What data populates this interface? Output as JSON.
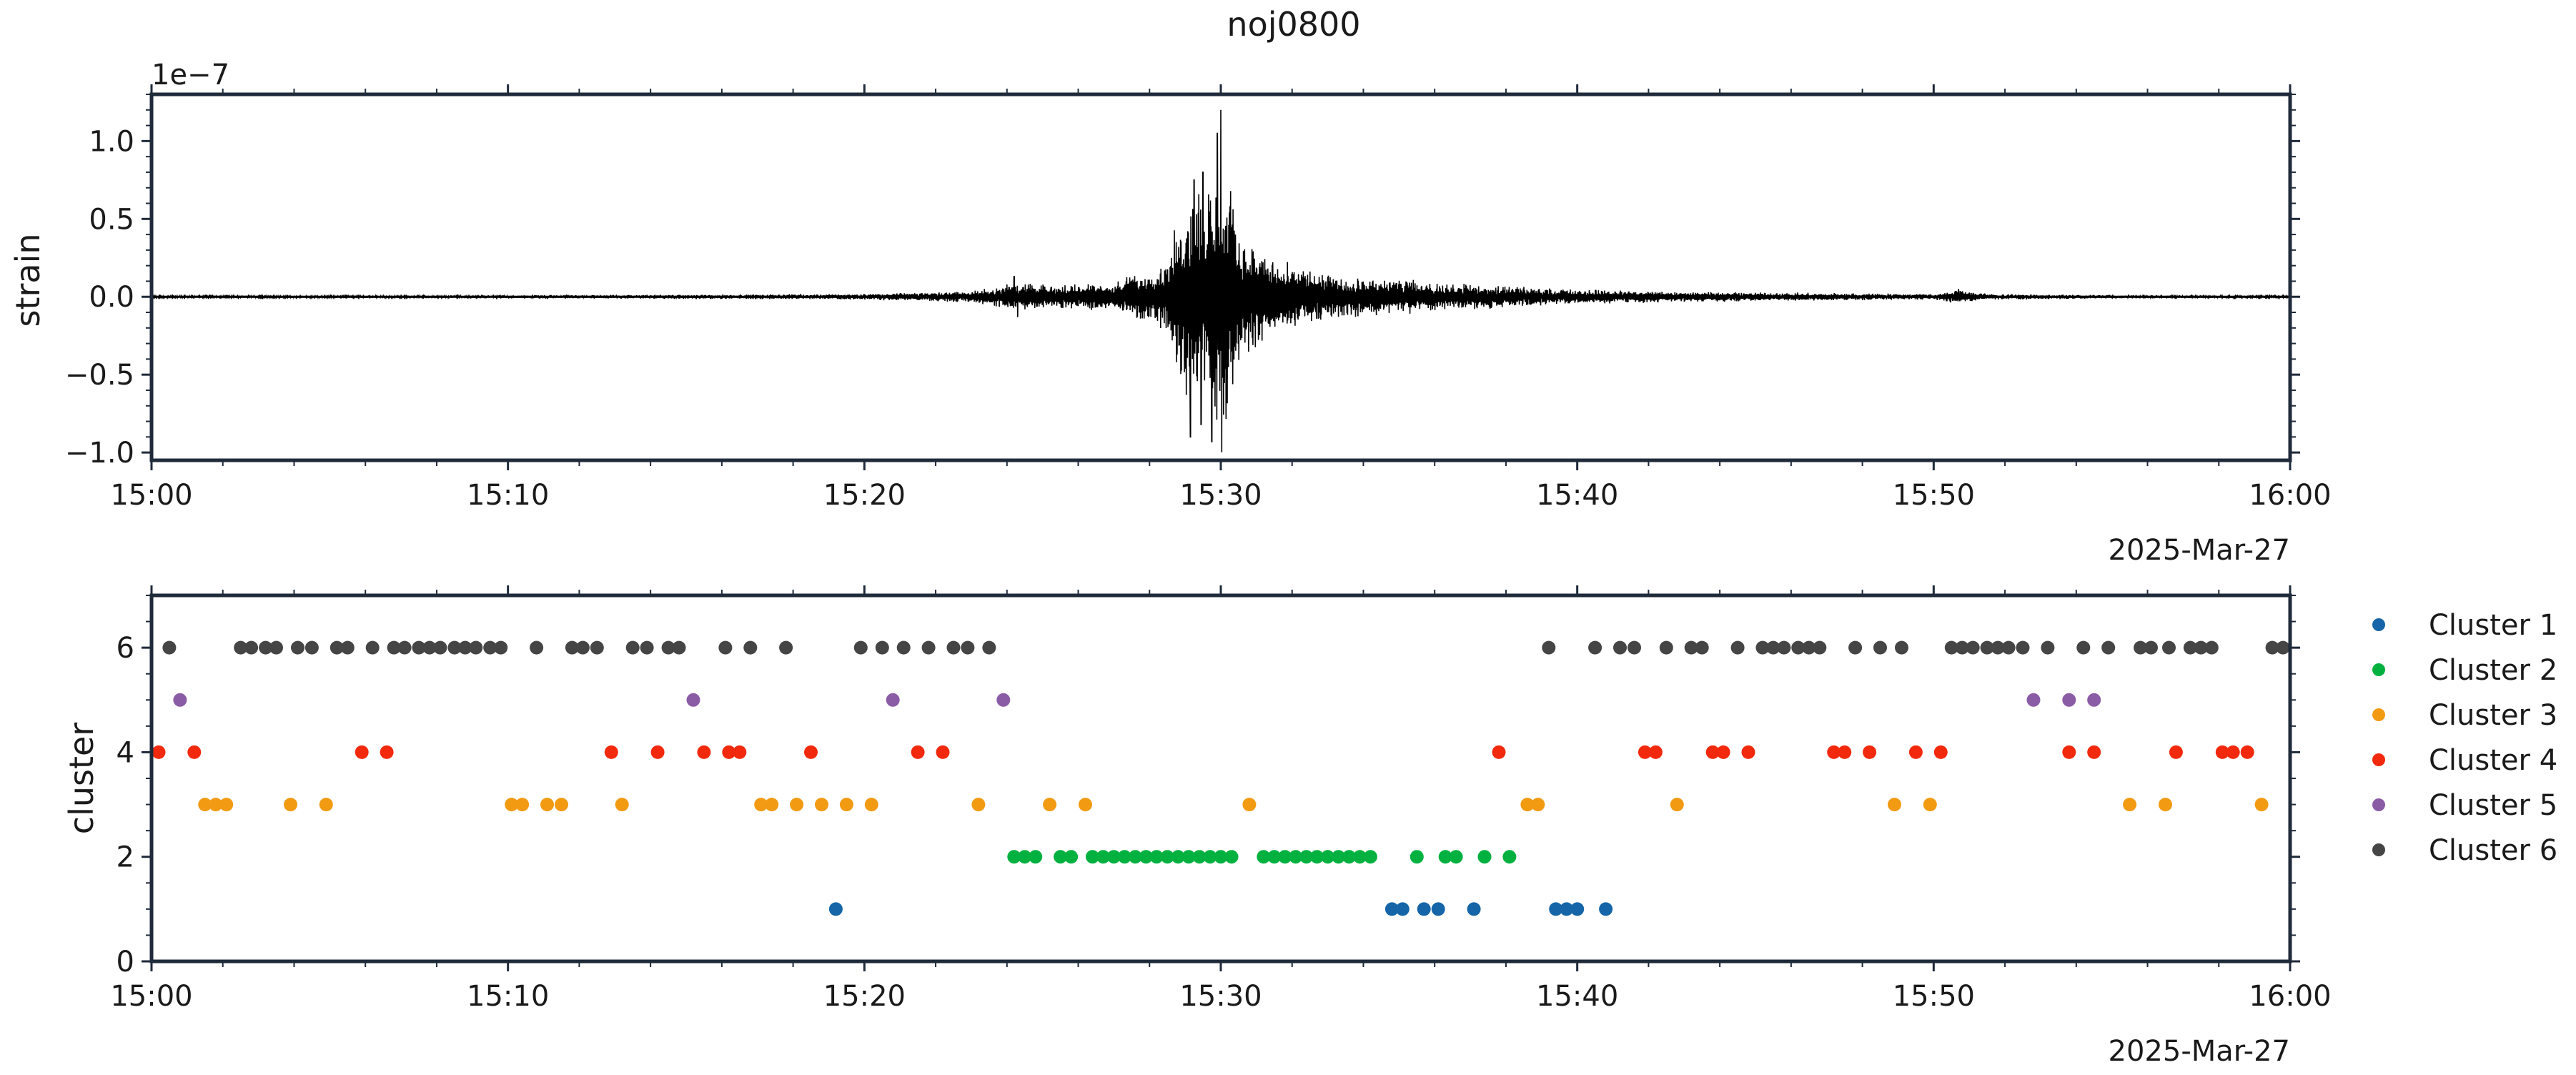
{
  "title": "noj0800",
  "chart_data": [
    {
      "type": "line",
      "ylabel": "strain",
      "y_offset_label": "1e−7",
      "xlim": [
        "15:00",
        "16:00"
      ],
      "ylim": [
        -1.05,
        1.3
      ],
      "x_ticks": [
        "15:00",
        "15:10",
        "15:20",
        "15:30",
        "15:40",
        "15:50",
        "16:00"
      ],
      "y_ticks": [
        {
          "value": 1.0,
          "label": "1.0"
        },
        {
          "value": 0.5,
          "label": "0.5"
        },
        {
          "value": 0.0,
          "label": "0.0"
        },
        {
          "value": -0.5,
          "label": "−0.5"
        },
        {
          "value": -1.0,
          "label": "−1.0"
        }
      ],
      "date_label": "2025-Mar-27",
      "series_color": "#000000",
      "envelope": [
        {
          "t": 0,
          "a": 0.008
        },
        {
          "t": 8,
          "a": 0.01
        },
        {
          "t": 14,
          "a": 0.014
        },
        {
          "t": 20,
          "a": 0.02
        },
        {
          "t": 23,
          "a": 0.04
        },
        {
          "t": 24.2,
          "a": 0.1
        },
        {
          "t": 25,
          "a": 0.08
        },
        {
          "t": 27,
          "a": 0.1
        },
        {
          "t": 28.5,
          "a": 0.25
        },
        {
          "t": 29.1,
          "a": 0.85
        },
        {
          "t": 29.6,
          "a": 0.7
        },
        {
          "t": 30,
          "a": 1.1
        },
        {
          "t": 30.5,
          "a": 0.5
        },
        {
          "t": 31.5,
          "a": 0.25
        },
        {
          "t": 33,
          "a": 0.15
        },
        {
          "t": 36,
          "a": 0.1
        },
        {
          "t": 40,
          "a": 0.05
        },
        {
          "t": 45,
          "a": 0.03
        },
        {
          "t": 50,
          "a": 0.02
        },
        {
          "t": 50.8,
          "a": 0.05
        },
        {
          "t": 51.5,
          "a": 0.02
        },
        {
          "t": 55,
          "a": 0.012
        },
        {
          "t": 60,
          "a": 0.008
        }
      ],
      "peaks": [
        {
          "t": 30.0,
          "v": 1.2
        },
        {
          "t": 29.9,
          "v": 1.05
        },
        {
          "t": 29.5,
          "v": 0.8
        },
        {
          "t": 29.25,
          "v": 0.75
        },
        {
          "t": 29.15,
          "v": -0.9
        },
        {
          "t": 29.75,
          "v": -0.93
        },
        {
          "t": 29.45,
          "v": -0.82
        },
        {
          "t": 30.1,
          "v": -0.55
        },
        {
          "t": 24.3,
          "v": -0.13
        },
        {
          "t": 24.2,
          "v": 0.13
        },
        {
          "t": 50.7,
          "v": 0.05
        }
      ]
    },
    {
      "type": "scatter",
      "ylabel": "cluster",
      "xlim": [
        "15:00",
        "16:00"
      ],
      "ylim": [
        0,
        7
      ],
      "x_ticks": [
        "15:00",
        "15:10",
        "15:20",
        "15:30",
        "15:40",
        "15:50",
        "16:00"
      ],
      "y_ticks": [
        {
          "value": 6,
          "label": "6"
        },
        {
          "value": 4,
          "label": "4"
        },
        {
          "value": 2,
          "label": "2"
        },
        {
          "value": 0,
          "label": "0"
        }
      ],
      "date_label": "2025-Mar-27",
      "legend_position": "right",
      "series": [
        {
          "name": "Cluster 1",
          "color": "#1565a8",
          "y": 1,
          "x_minutes": [
            19.2,
            34.8,
            35.1,
            35.7,
            36.1,
            37.1,
            39.4,
            39.7,
            40.0,
            40.8
          ]
        },
        {
          "name": "Cluster 2",
          "color": "#00b140",
          "y": 2,
          "x_minutes": [
            24.2,
            24.5,
            24.8,
            25.5,
            25.8,
            26.4,
            26.7,
            27.0,
            27.3,
            27.6,
            27.9,
            28.2,
            28.5,
            28.8,
            29.1,
            29.4,
            29.7,
            30.0,
            30.3,
            31.2,
            31.5,
            31.8,
            32.1,
            32.4,
            32.7,
            33.0,
            33.3,
            33.6,
            33.9,
            34.2,
            35.5,
            36.3,
            36.6,
            37.4,
            38.1
          ]
        },
        {
          "name": "Cluster 3",
          "color": "#f29a12",
          "y": 3,
          "x_minutes": [
            1.5,
            1.8,
            2.1,
            3.9,
            4.9,
            10.1,
            10.4,
            11.1,
            11.5,
            13.2,
            17.1,
            17.4,
            18.1,
            18.8,
            19.5,
            20.2,
            23.2,
            25.2,
            26.2,
            30.8,
            38.6,
            38.9,
            42.8,
            48.9,
            49.9,
            55.5,
            56.5,
            59.2
          ]
        },
        {
          "name": "Cluster 4",
          "color": "#f2290d",
          "y": 4,
          "x_minutes": [
            0.2,
            1.2,
            5.9,
            6.6,
            12.9,
            14.2,
            15.5,
            16.2,
            16.5,
            18.5,
            21.5,
            22.2,
            37.8,
            41.9,
            42.2,
            43.8,
            44.1,
            44.8,
            47.2,
            47.5,
            48.2,
            49.5,
            50.2,
            53.8,
            54.5,
            56.8,
            58.1,
            58.4,
            58.8
          ]
        },
        {
          "name": "Cluster 5",
          "color": "#8b5ca6",
          "y": 5,
          "x_minutes": [
            0.8,
            15.2,
            20.8,
            23.9,
            52.8,
            53.8,
            54.5
          ]
        },
        {
          "name": "Cluster 6",
          "color": "#454545",
          "y": 6,
          "x_minutes": [
            0.5,
            2.5,
            2.8,
            3.2,
            3.5,
            4.1,
            4.5,
            5.2,
            5.5,
            6.2,
            6.8,
            7.1,
            7.5,
            7.8,
            8.1,
            8.5,
            8.8,
            9.1,
            9.5,
            9.8,
            10.8,
            11.8,
            12.1,
            12.5,
            13.5,
            13.9,
            14.5,
            14.8,
            16.1,
            16.8,
            17.8,
            19.9,
            20.5,
            21.1,
            21.8,
            22.5,
            22.9,
            23.5,
            39.2,
            40.5,
            41.2,
            41.6,
            42.5,
            43.2,
            43.5,
            44.5,
            45.2,
            45.5,
            45.8,
            46.2,
            46.5,
            46.8,
            47.8,
            48.5,
            49.1,
            50.5,
            50.8,
            51.1,
            51.5,
            51.8,
            52.1,
            52.5,
            53.2,
            54.2,
            54.9,
            55.8,
            56.1,
            56.6,
            57.2,
            57.5,
            57.8,
            59.5,
            59.8
          ]
        }
      ]
    }
  ]
}
